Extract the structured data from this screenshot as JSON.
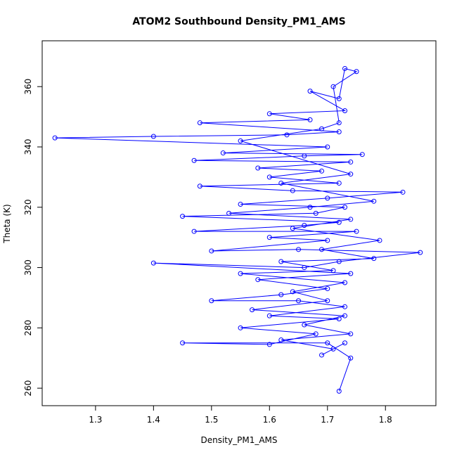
{
  "chart_data": {
    "type": "line",
    "marker": "open-circle",
    "title": "ATOM2 Southbound Density_PM1_AMS",
    "xlabel": "Density_PM1_AMS",
    "ylabel": "Theta (K)",
    "color": "#0000ff",
    "xlim": [
      1.208,
      1.887
    ],
    "ylim": [
      254.2,
      375.2
    ],
    "xticks": [
      1.3,
      1.4,
      1.5,
      1.6,
      1.7,
      1.8
    ],
    "yticks": [
      260,
      280,
      300,
      320,
      340,
      360
    ],
    "grid": false,
    "x": [
      1.72,
      1.74,
      1.7,
      1.45,
      1.6,
      1.68,
      1.55,
      1.72,
      1.6,
      1.73,
      1.65,
      1.5,
      1.62,
      1.7,
      1.58,
      1.74,
      1.4,
      1.66,
      1.72,
      1.86,
      1.65,
      1.5,
      1.7,
      1.6,
      1.75,
      1.47,
      1.66,
      1.72,
      1.45,
      1.68,
      1.73,
      1.55,
      1.7,
      1.83,
      1.64,
      1.48,
      1.72,
      1.6,
      1.69,
      1.58,
      1.74,
      1.47,
      1.66,
      1.76,
      1.52,
      1.7,
      1.23,
      1.4,
      1.63,
      1.72,
      1.48,
      1.67,
      1.6,
      1.73,
      1.67,
      1.72,
      1.73,
      1.75,
      1.71,
      1.72,
      1.69,
      1.55,
      1.74,
      1.62,
      1.78,
      1.67,
      1.53,
      1.74,
      1.64,
      1.79,
      1.69,
      1.78,
      1.62,
      1.71,
      1.55,
      1.73,
      1.64,
      1.7,
      1.57,
      1.73,
      1.66,
      1.74,
      1.62,
      1.71,
      1.69,
      1.73
    ],
    "y": [
      259,
      270,
      275,
      275,
      274.5,
      278,
      280,
      283,
      284,
      287,
      289,
      289,
      291,
      293,
      296,
      298,
      301.5,
      300,
      302,
      305,
      306,
      305.5,
      309,
      310,
      312,
      312,
      314,
      315,
      317,
      318,
      320,
      321,
      323,
      325,
      325.5,
      327,
      328,
      330,
      332,
      333,
      335,
      335.5,
      337,
      337.5,
      338,
      340,
      343,
      343.5,
      344,
      345,
      348,
      349,
      351,
      352,
      358.5,
      356,
      366,
      365,
      360,
      348,
      346,
      342,
      331,
      328,
      322,
      320,
      318,
      316,
      313,
      309,
      306,
      303,
      302,
      299,
      298,
      295,
      292,
      289,
      286,
      284,
      281,
      278,
      276,
      273,
      271,
      275
    ]
  }
}
